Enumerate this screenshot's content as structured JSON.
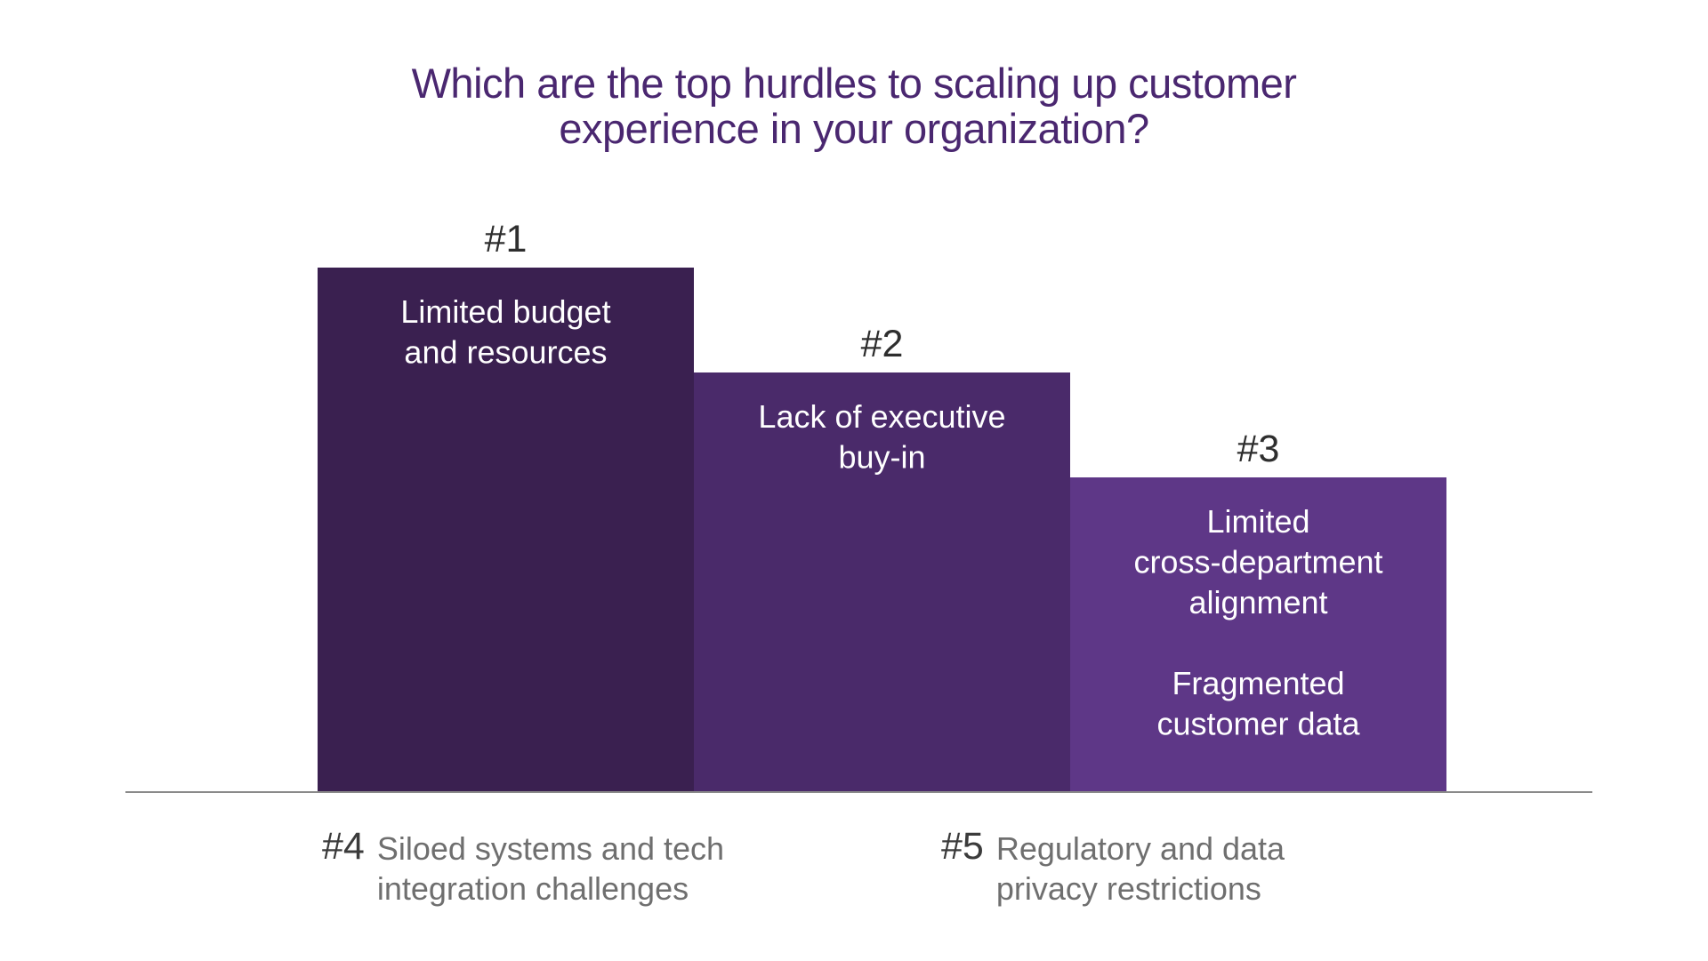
{
  "chart_data": {
    "type": "bar",
    "title": [
      "Which are the top hurdles to scaling up customer",
      "experience in your organization?"
    ],
    "categories": [
      "#1",
      "#2",
      "#3"
    ],
    "values": [
      3,
      2.4,
      1.8
    ],
    "bar_labels": [
      [
        "Limited budget",
        "and resources"
      ],
      [
        "Lack of executive",
        "buy-in"
      ],
      [
        "Limited",
        "cross-department",
        "alignment",
        "",
        "Fragmented",
        "customer data"
      ]
    ],
    "colors": [
      "#3a2050",
      "#4a2a6a",
      "#5e3787"
    ],
    "axis_color": "#8a8a8a",
    "rank_color": "#2e2e2e",
    "label_color": "#ffffff",
    "xlabel": "",
    "ylabel": "",
    "grid": false,
    "legend": "none"
  },
  "footnotes": [
    {
      "rank": "#4",
      "lines": [
        "Siloed systems and tech",
        "integration challenges"
      ]
    },
    {
      "rank": "#5",
      "lines": [
        "Regulatory and data",
        "privacy restrictions"
      ]
    }
  ]
}
